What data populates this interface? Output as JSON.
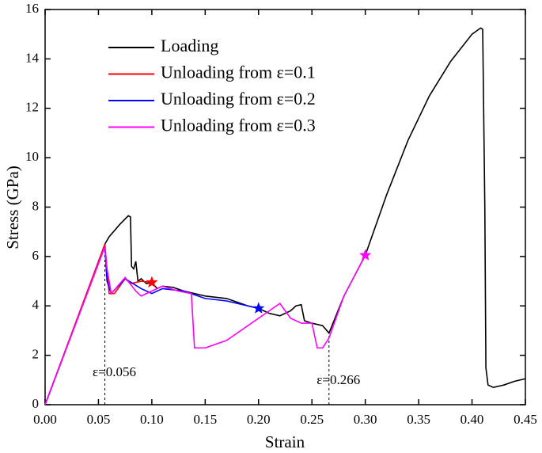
{
  "chart_data": {
    "type": "line",
    "xlabel": "Strain",
    "ylabel": "Stress (GPa)",
    "xlim": [
      0,
      0.45
    ],
    "ylim": [
      0,
      16
    ],
    "xticks": [
      {
        "value": 0,
        "label": "0.00"
      },
      {
        "value": 0.05,
        "label": "0.05"
      },
      {
        "value": 0.1,
        "label": "0.10"
      },
      {
        "value": 0.15,
        "label": "0.15"
      },
      {
        "value": 0.2,
        "label": "0.20"
      },
      {
        "value": 0.25,
        "label": "0.25"
      },
      {
        "value": 0.3,
        "label": "0.30"
      },
      {
        "value": 0.35,
        "label": "0.35"
      },
      {
        "value": 0.4,
        "label": "0.40"
      },
      {
        "value": 0.45,
        "label": "0.45"
      }
    ],
    "yticks": [
      0,
      2,
      4,
      6,
      8,
      10,
      12,
      14,
      16
    ],
    "legend": "upper left",
    "series": [
      {
        "name": "Loading",
        "color": "#000000",
        "x": [
          0,
          0.02,
          0.04,
          0.056,
          0.06,
          0.07,
          0.078,
          0.08,
          0.081,
          0.083,
          0.085,
          0.087,
          0.09,
          0.095,
          0.1,
          0.105,
          0.11,
          0.12,
          0.13,
          0.14,
          0.15,
          0.17,
          0.19,
          0.2,
          0.21,
          0.22,
          0.23,
          0.235,
          0.24,
          0.243,
          0.25,
          0.26,
          0.266,
          0.28,
          0.3,
          0.32,
          0.34,
          0.36,
          0.38,
          0.4,
          0.408,
          0.41,
          0.412,
          0.413,
          0.415,
          0.42,
          0.43,
          0.44,
          0.45
        ],
        "values": [
          0,
          2.3,
          4.6,
          6.5,
          6.8,
          7.3,
          7.65,
          7.6,
          5.6,
          5.5,
          5.8,
          5.0,
          5.1,
          4.9,
          4.95,
          4.7,
          4.8,
          4.75,
          4.6,
          4.5,
          4.4,
          4.3,
          4.0,
          3.9,
          3.7,
          3.6,
          3.8,
          4.0,
          4.05,
          3.4,
          3.3,
          3.2,
          2.9,
          4.4,
          6.05,
          8.5,
          10.7,
          12.5,
          13.9,
          15.0,
          15.25,
          15.2,
          8,
          1.5,
          0.8,
          0.7,
          0.8,
          0.95,
          1.05
        ]
      },
      {
        "name": "Unloading from ε=0.1",
        "color": "#ff0000",
        "marker": "star",
        "x": [
          0,
          0.056,
          0.06,
          0.065,
          0.075,
          0.08,
          0.09,
          0.1
        ],
        "values": [
          0,
          6.5,
          4.5,
          4.5,
          5.1,
          4.9,
          5.0,
          4.95
        ]
      },
      {
        "name": "Unloading from ε=0.2",
        "color": "#0000ff",
        "marker": "star",
        "x": [
          0,
          0.056,
          0.058,
          0.062,
          0.075,
          0.09,
          0.1,
          0.11,
          0.13,
          0.15,
          0.17,
          0.2
        ],
        "values": [
          0,
          6.4,
          5.0,
          4.5,
          5.1,
          4.7,
          4.5,
          4.7,
          4.6,
          4.3,
          4.2,
          3.9
        ]
      },
      {
        "name": "Unloading from ε=0.3",
        "color": "#ff00ff",
        "marker": "star",
        "x": [
          0,
          0.056,
          0.058,
          0.062,
          0.075,
          0.085,
          0.09,
          0.1,
          0.11,
          0.125,
          0.137,
          0.14,
          0.15,
          0.17,
          0.19,
          0.21,
          0.22,
          0.23,
          0.24,
          0.25,
          0.255,
          0.26,
          0.266,
          0.28,
          0.3
        ],
        "values": [
          0,
          6.4,
          5.5,
          4.5,
          5.15,
          4.6,
          4.4,
          4.6,
          4.8,
          4.6,
          4.5,
          2.3,
          2.3,
          2.6,
          3.2,
          3.8,
          4.1,
          3.5,
          3.3,
          3.3,
          2.3,
          2.3,
          2.7,
          4.4,
          6.05
        ]
      }
    ],
    "annotations": [
      {
        "text": "ε=0.056",
        "x": 0.056
      },
      {
        "text": "ε=0.266",
        "x": 0.266
      }
    ]
  }
}
